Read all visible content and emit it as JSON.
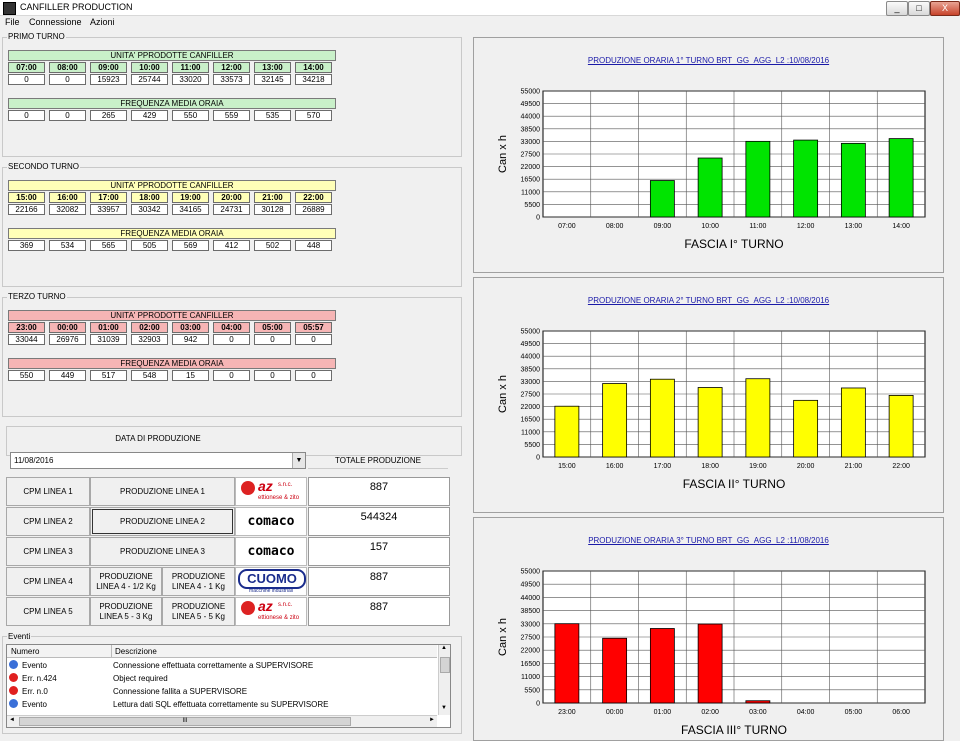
{
  "window": {
    "title": "CANFILLER PRODUCTION",
    "min_glyph": "_",
    "max_glyph": "□",
    "close_glyph": "X"
  },
  "menu": [
    "File",
    "Connessione",
    "Azioni"
  ],
  "shifts": [
    {
      "label": "PRIMO TURNO",
      "units_header": "UNITA' PPRODOTTE CANFILLER",
      "freq_header": "FREQUENZA MEDIA ORAIA",
      "hours": [
        "07:00",
        "08:00",
        "09:00",
        "10:00",
        "11:00",
        "12:00",
        "13:00",
        "14:00"
      ],
      "units": [
        "0",
        "0",
        "15923",
        "25744",
        "33020",
        "33573",
        "32145",
        "34218"
      ],
      "freq": [
        "0",
        "0",
        "265",
        "429",
        "550",
        "559",
        "535",
        "570"
      ],
      "color": "#c9f0c9"
    },
    {
      "label": "SECONDO TURNO",
      "units_header": "UNITA' PPRODOTTE CANFILLER",
      "freq_header": "FREQUENZA MEDIA ORAIA",
      "hours": [
        "15:00",
        "16:00",
        "17:00",
        "18:00",
        "19:00",
        "20:00",
        "21:00",
        "22:00"
      ],
      "units": [
        "22166",
        "32082",
        "33957",
        "30342",
        "34165",
        "24731",
        "30128",
        "26889"
      ],
      "freq": [
        "369",
        "534",
        "565",
        "505",
        "569",
        "412",
        "502",
        "448"
      ],
      "color": "#ffffb8"
    },
    {
      "label": "TERZO TURNO",
      "units_header": "UNITA' PPRODOTTE CANFILLER",
      "freq_header": "FREQUENZA MEDIA ORAIA",
      "hours": [
        "23:00",
        "00:00",
        "01:00",
        "02:00",
        "03:00",
        "04:00",
        "05:00",
        "05:57"
      ],
      "units": [
        "33044",
        "26976",
        "31039",
        "32903",
        "942",
        "0",
        "0",
        "0"
      ],
      "freq": [
        "550",
        "449",
        "517",
        "548",
        "15",
        "0",
        "0",
        "0"
      ],
      "color": "#f6b5b5"
    }
  ],
  "production": {
    "date_label": "DATA DI PRODUZIONE",
    "date_value": "11/08/2016",
    "total_label": "TOTALE  PRODUZIONE",
    "lines": [
      {
        "cpm": "CPM LINEA 1",
        "prod": [
          "PRODUZIONE LINEA 1"
        ],
        "logo": "az",
        "total": "887"
      },
      {
        "cpm": "CPM LINEA 2",
        "prod": [
          "PRODUZIONE LINEA 2"
        ],
        "logo": "comaco",
        "total": "544324"
      },
      {
        "cpm": "CPM LINEA 3",
        "prod": [
          "PRODUZIONE LINEA 3"
        ],
        "logo": "comaco",
        "total": "157"
      },
      {
        "cpm": "CPM LINEA 4",
        "prod": [
          "PRODUZIONE LINEA 4 - 1/2 Kg",
          "PRODUZIONE LINEA 4 - 1 Kg"
        ],
        "logo": "cuomo",
        "total": "887"
      },
      {
        "cpm": "CPM LINEA 5",
        "prod": [
          "PRODUZIONE LINEA 5 - 3 Kg",
          "PRODUZIONE LINEA 5 - 5 Kg"
        ],
        "logo": "az",
        "total": "887"
      }
    ],
    "logos": {
      "az": {
        "mark": "az",
        "suffix": "s.n.c.",
        "sub": "ettionese & zito"
      },
      "comaco": {
        "mark": "comaco"
      },
      "cuomo": {
        "mark": "CUOMO",
        "sub": "macchine industriali"
      }
    }
  },
  "events": {
    "label": "Eventi",
    "columns": [
      "Numero",
      "Descrizione"
    ],
    "rows": [
      {
        "num": "Evento",
        "desc": "Connessione effettuata correttamente a SUPERVISORE",
        "icon": "info"
      },
      {
        "num": "Err. n.424",
        "desc": "Object required",
        "icon": "error"
      },
      {
        "num": "Err. n.0",
        "desc": "Connessione fallita a SUPERVISORE",
        "icon": "error"
      },
      {
        "num": "Evento",
        "desc": "Lettura dati SQL effettuata correttamente su SUPERVISORE",
        "icon": "info"
      }
    ],
    "scroll_up": "▲",
    "scroll_down": "▼",
    "scroll_left": "◄",
    "scroll_right": "►",
    "thumb": "III"
  },
  "chart_data": [
    {
      "type": "bar",
      "title": "PRODUZIONE ORARIA 1° TURNO BRT_GG_AGG_L2  :10/08/2016",
      "xlabel": "FASCIA I° TURNO",
      "ylabel": "Can x h",
      "categories": [
        "07:00",
        "08:00",
        "09:00",
        "10:00",
        "11:00",
        "12:00",
        "13:00",
        "14:00"
      ],
      "values": [
        0,
        0,
        15923,
        25744,
        33020,
        33573,
        32145,
        34218
      ],
      "yticks": [
        0,
        5500,
        11000,
        16500,
        22000,
        27500,
        33000,
        38500,
        44000,
        49500,
        55000
      ],
      "ylim": [
        0,
        55000
      ],
      "color": "#00e400",
      "grid": true
    },
    {
      "type": "bar",
      "title": "PRODUZIONE ORARIA 2° TURNO BRT_GG_AGG_L2  :10/08/2016",
      "xlabel": "FASCIA II° TURNO",
      "ylabel": "Can x h",
      "categories": [
        "15:00",
        "16:00",
        "17:00",
        "18:00",
        "19:00",
        "20:00",
        "21:00",
        "22:00"
      ],
      "values": [
        22166,
        32082,
        33957,
        30342,
        34165,
        24731,
        30128,
        26889
      ],
      "yticks": [
        0,
        5500,
        11000,
        16500,
        22000,
        27500,
        33000,
        38500,
        44000,
        49500,
        55000
      ],
      "ylim": [
        0,
        55000
      ],
      "color": "#ffff00",
      "grid": true
    },
    {
      "type": "bar",
      "title": "PRODUZIONE ORARIA 3° TURNO BRT_GG_AGG_L2  :11/08/2016",
      "xlabel": "FASCIA III° TURNO",
      "ylabel": "Can x h",
      "categories": [
        "23:00",
        "00:00",
        "01:00",
        "02:00",
        "03:00",
        "04:00",
        "05:00",
        "06:00"
      ],
      "values": [
        33044,
        26976,
        31039,
        32903,
        942,
        0,
        0,
        0
      ],
      "yticks": [
        0,
        5500,
        11000,
        16500,
        22000,
        27500,
        33000,
        38500,
        44000,
        49500,
        55000
      ],
      "ylim": [
        0,
        55000
      ],
      "color": "#ff0000",
      "grid": true
    }
  ]
}
